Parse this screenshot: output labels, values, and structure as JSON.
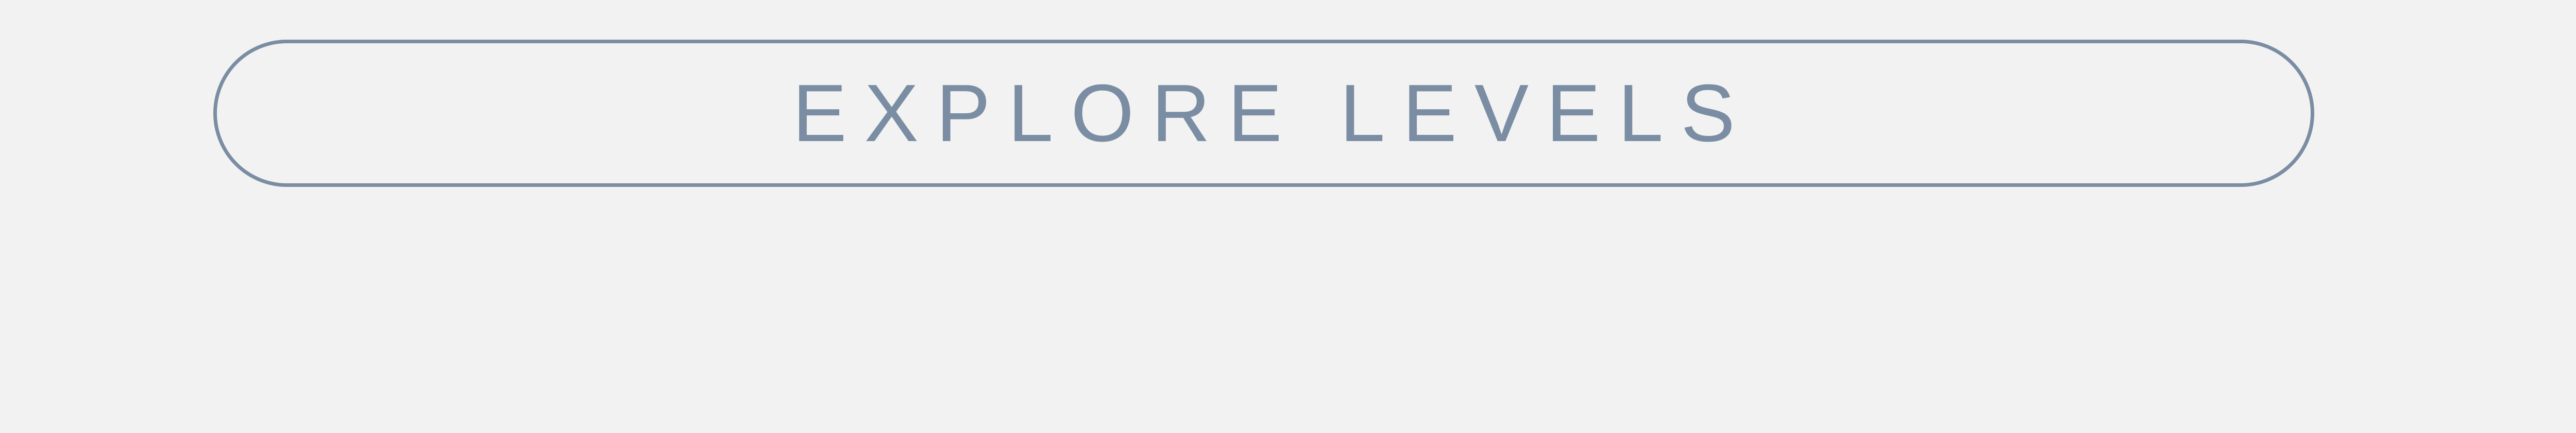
{
  "explore_button": {
    "label": "EXPLORE LEVELS"
  },
  "colors": {
    "background": "#f2f2f2",
    "accent": "#7a8da3"
  }
}
